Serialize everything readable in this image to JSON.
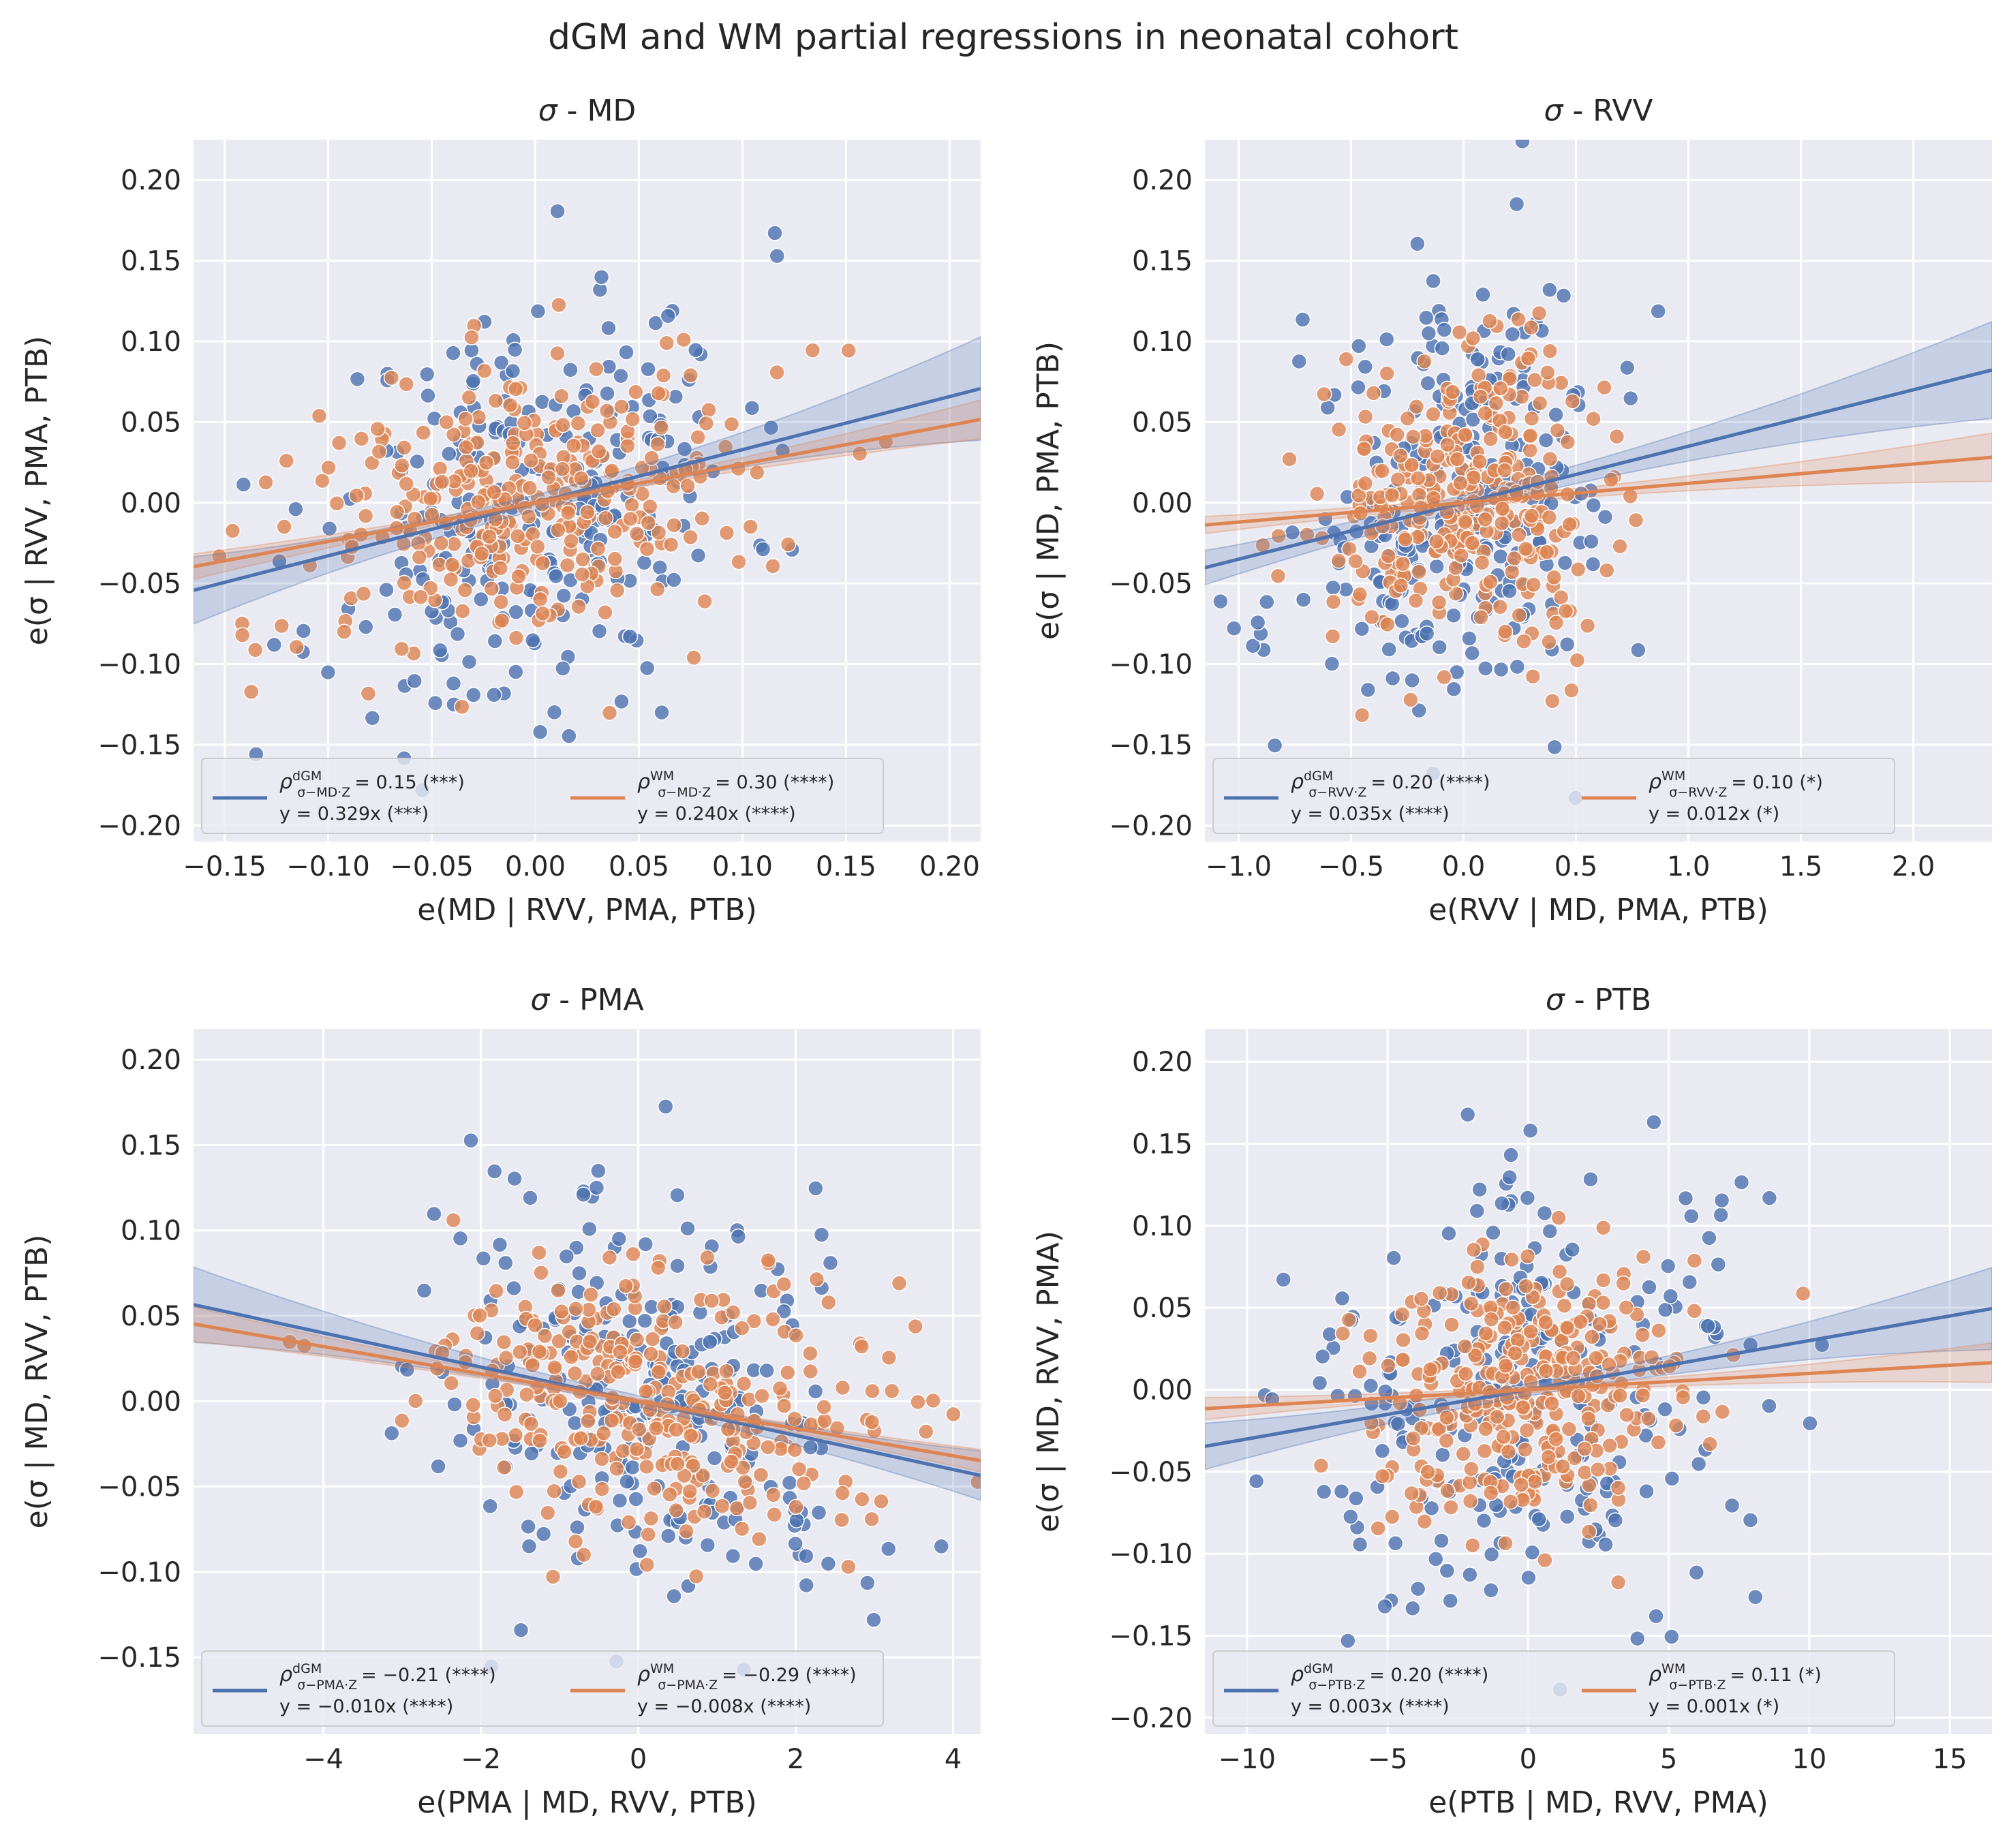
{
  "figure": {
    "title": "dGM and WM partial regressions in neonatal cohort",
    "colors": {
      "dGM": "#4c72b0",
      "WM": "#dd8452",
      "background": "#eaeaf2",
      "grid": "#ffffff"
    }
  },
  "chart_data": [
    {
      "type": "scatter",
      "title": "σ - MD",
      "title_sigma": "σ",
      "title_rest": " - MD",
      "xlabel": "e(MD | RVV, PMA, PTB)",
      "ylabel": "e(σ | RVV, PMA, PTB)",
      "xlim": [
        -0.165,
        0.215
      ],
      "ylim": [
        -0.21,
        0.225
      ],
      "xticks": [
        -0.15,
        -0.1,
        -0.05,
        0.0,
        0.05,
        0.1,
        0.15,
        0.2
      ],
      "xtick_labels": [
        "−0.15",
        "−0.10",
        "−0.05",
        "0.00",
        "0.05",
        "0.10",
        "0.15",
        "0.20"
      ],
      "yticks": [
        -0.2,
        -0.15,
        -0.1,
        -0.05,
        0.0,
        0.05,
        0.1,
        0.15,
        0.2
      ],
      "ytick_labels": [
        "−0.20",
        "−0.15",
        "−0.10",
        "−0.05",
        "0.00",
        "0.05",
        "0.10",
        "0.15",
        "0.20"
      ],
      "grid": true,
      "legend_position": "lower left",
      "series": [
        {
          "name": "dGM",
          "color": "#4c72b0",
          "slope": 0.329,
          "x_spread": 0.05,
          "y_spread": 0.065,
          "n_points": 260,
          "seed": 11,
          "ci_band": 0.032,
          "legend_rho_prefix": "ρ",
          "legend_rho_super": "dGM",
          "legend_rho_sub": "σ−MD·Z",
          "legend_rho_text": "= 0.15 (***)",
          "legend_line2": "y = 0.329x (***)"
        },
        {
          "name": "WM",
          "color": "#dd8452",
          "slope": 0.24,
          "x_spread": 0.055,
          "y_spread": 0.045,
          "n_points": 320,
          "seed": 12,
          "ci_band": 0.012,
          "legend_rho_prefix": "ρ",
          "legend_rho_super": "WM",
          "legend_rho_sub": "σ−MD·Z",
          "legend_rho_text": "= 0.30 (****)",
          "legend_line2": "y = 0.240x (****)"
        }
      ]
    },
    {
      "type": "scatter",
      "title": "σ - RVV",
      "title_sigma": "σ",
      "title_rest": " - RVV",
      "xlabel": "e(RVV | MD, PMA, PTB)",
      "ylabel": "e(σ | MD, PMA, PTB)",
      "xlim": [
        -1.15,
        2.35
      ],
      "ylim": [
        -0.21,
        0.225
      ],
      "xticks": [
        -1.0,
        -0.5,
        0.0,
        0.5,
        1.0,
        1.5,
        2.0
      ],
      "xtick_labels": [
        "−1.0",
        "−0.5",
        "0.0",
        "0.5",
        "1.0",
        "1.5",
        "2.0"
      ],
      "yticks": [
        -0.2,
        -0.15,
        -0.1,
        -0.05,
        0.0,
        0.05,
        0.1,
        0.15,
        0.2
      ],
      "ytick_labels": [
        "−0.20",
        "−0.15",
        "−0.10",
        "−0.05",
        "0.00",
        "0.05",
        "0.10",
        "0.15",
        "0.20"
      ],
      "grid": true,
      "legend_position": "lower left",
      "series": [
        {
          "name": "dGM",
          "color": "#4c72b0",
          "slope": 0.035,
          "x_spread": 0.35,
          "y_spread": 0.065,
          "n_points": 260,
          "seed": 21,
          "ci_band": 0.03,
          "legend_rho_prefix": "ρ",
          "legend_rho_super": "dGM",
          "legend_rho_sub": "σ−RVV·Z",
          "legend_rho_text": "= 0.20 (****)",
          "legend_line2": "y = 0.035x (****)"
        },
        {
          "name": "WM",
          "color": "#dd8452",
          "slope": 0.012,
          "x_spread": 0.3,
          "y_spread": 0.045,
          "n_points": 320,
          "seed": 22,
          "ci_band": 0.015,
          "legend_rho_prefix": "ρ",
          "legend_rho_super": "WM",
          "legend_rho_sub": "σ−RVV·Z",
          "legend_rho_text": "= 0.10 (*)",
          "legend_line2": "y = 0.012x (*)"
        }
      ]
    },
    {
      "type": "scatter",
      "title": "σ - PMA",
      "title_sigma": "σ",
      "title_rest": " - PMA",
      "xlabel": "e(PMA | MD, RVV, PTB)",
      "ylabel": "e(σ | MD, RVV, PTB)",
      "xlim": [
        -5.65,
        4.35
      ],
      "ylim": [
        -0.195,
        0.218
      ],
      "xticks": [
        -4,
        -2,
        0,
        2,
        4
      ],
      "xtick_labels": [
        "−4",
        "−2",
        "0",
        "2",
        "4"
      ],
      "yticks": [
        -0.15,
        -0.1,
        -0.05,
        0.0,
        0.05,
        0.1,
        0.15,
        0.2
      ],
      "ytick_labels": [
        "−0.15",
        "−0.10",
        "−0.05",
        "0.00",
        "0.05",
        "0.10",
        "0.15",
        "0.20"
      ],
      "grid": true,
      "legend_position": "lower left",
      "series": [
        {
          "name": "dGM",
          "color": "#4c72b0",
          "slope": -0.01,
          "x_spread": 1.4,
          "y_spread": 0.06,
          "n_points": 260,
          "seed": 31,
          "ci_band": 0.022,
          "legend_rho_prefix": "ρ",
          "legend_rho_super": "dGM",
          "legend_rho_sub": "σ−PMA·Z",
          "legend_rho_text": "= −0.21 (****)",
          "legend_line2": "y = −0.010x (****)"
        },
        {
          "name": "WM",
          "color": "#dd8452",
          "slope": -0.008,
          "x_spread": 1.6,
          "y_spread": 0.04,
          "n_points": 320,
          "seed": 32,
          "ci_band": 0.01,
          "legend_rho_prefix": "ρ",
          "legend_rho_super": "WM",
          "legend_rho_sub": "σ−PMA·Z",
          "legend_rho_text": "= −0.29 (****)",
          "legend_line2": "y = −0.008x (****)"
        }
      ]
    },
    {
      "type": "scatter",
      "title": "σ - PTB",
      "title_sigma": "σ",
      "title_rest": " - PTB",
      "xlabel": "e(PTB | MD, RVV, PMA)",
      "ylabel": "e(σ | MD, RVV, PMA)",
      "xlim": [
        -11.5,
        16.5
      ],
      "ylim": [
        -0.21,
        0.22
      ],
      "xticks": [
        -10,
        -5,
        0,
        5,
        10,
        15
      ],
      "xtick_labels": [
        "−10",
        "−5",
        "0",
        "5",
        "10",
        "15"
      ],
      "yticks": [
        -0.2,
        -0.15,
        -0.1,
        -0.05,
        0.0,
        0.05,
        0.1,
        0.15,
        0.2
      ],
      "ytick_labels": [
        "−0.20",
        "−0.15",
        "−0.10",
        "−0.05",
        "0.00",
        "0.05",
        "0.10",
        "0.15",
        "0.20"
      ],
      "grid": true,
      "legend_position": "lower left",
      "series": [
        {
          "name": "dGM",
          "color": "#4c72b0",
          "slope": 0.003,
          "x_spread": 4.0,
          "y_spread": 0.065,
          "n_points": 260,
          "seed": 41,
          "ci_band": 0.025,
          "legend_rho_prefix": "ρ",
          "legend_rho_super": "dGM",
          "legend_rho_sub": "σ−PTB·Z",
          "legend_rho_text": "= 0.20 (****)",
          "legend_line2": "y = 0.003x (****)"
        },
        {
          "name": "WM",
          "color": "#dd8452",
          "slope": 0.001,
          "x_spread": 2.8,
          "y_spread": 0.045,
          "n_points": 320,
          "seed": 42,
          "ci_band": 0.012,
          "legend_rho_prefix": "ρ",
          "legend_rho_super": "WM",
          "legend_rho_sub": "σ−PTB·Z",
          "legend_rho_text": "= 0.11 (*)",
          "legend_line2": "y = 0.001x (*)"
        }
      ]
    }
  ]
}
